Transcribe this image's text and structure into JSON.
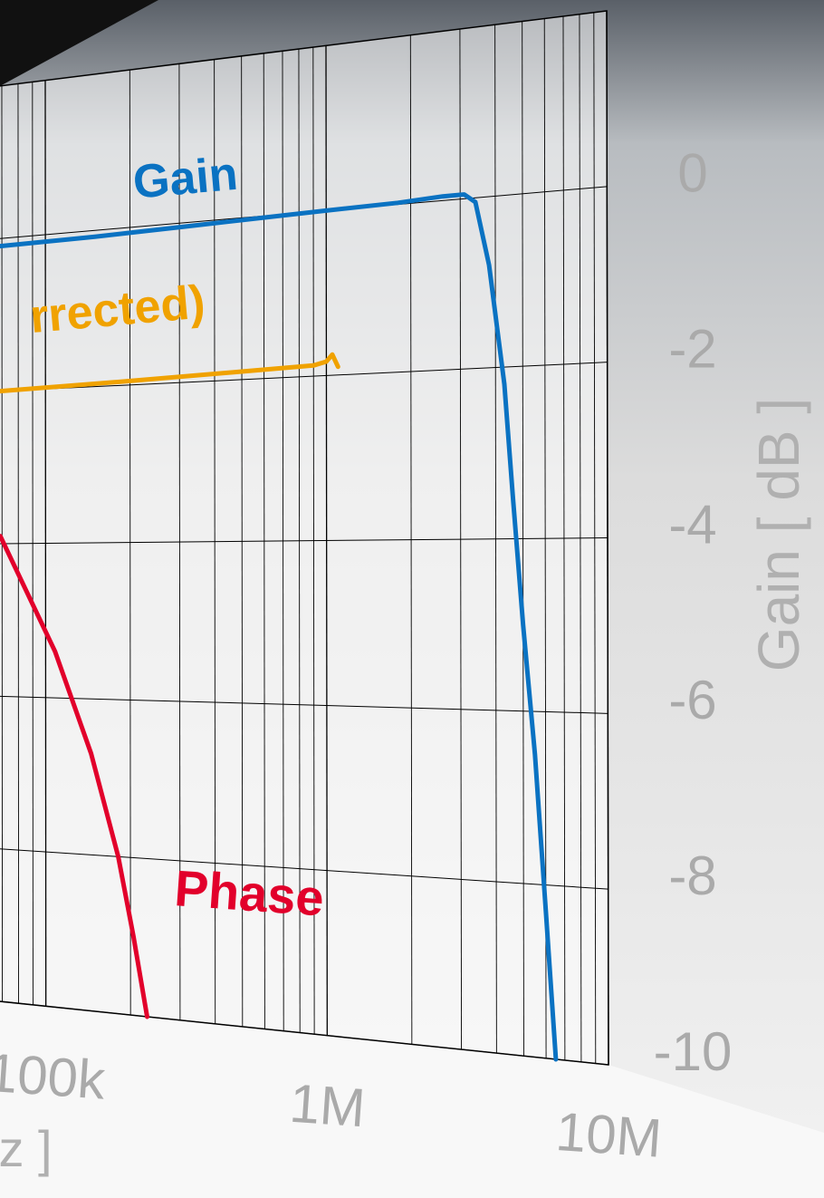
{
  "chart_data": {
    "type": "line",
    "x_label": "z ]",
    "y_label": "Gain [ dB ]",
    "xlog": true,
    "xlim": [
      10000,
      10000000
    ],
    "xticks": [
      {
        "value": 100000,
        "label": "100k"
      },
      {
        "value": 1000000,
        "label": "1M"
      },
      {
        "value": 10000000,
        "label": "10M"
      }
    ],
    "ylim": [
      -10,
      2
    ],
    "yticks": [
      -10,
      -8,
      -6,
      -4,
      -2,
      0
    ],
    "grid": true,
    "series": [
      {
        "name": "Gain",
        "color": "#0a72c2",
        "x": [
          69000,
          150000,
          305000,
          600000,
          1000000,
          1800000,
          2600000,
          3100000,
          3400000,
          3800000,
          4300000,
          4600000,
          5000000,
          5500000,
          6000000,
          6500000
        ],
        "values": [
          -0.1,
          -0.08,
          -0.05,
          -0.02,
          0,
          0.02,
          0.05,
          0.05,
          -0.05,
          -0.8,
          -2.2,
          -3.5,
          -5.0,
          -6.5,
          -8.3,
          -10
        ]
      },
      {
        "name": "rrected)",
        "color": "#f0a200",
        "x": [
          69000,
          200000,
          500000,
          900000,
          1000000,
          1050000,
          1100000
        ],
        "values": [
          -2.0,
          -1.95,
          -1.9,
          -1.87,
          -1.83,
          -1.75,
          -1.9
        ]
      },
      {
        "name": "Phase",
        "color": "#e2002b",
        "x": [
          69000,
          108000,
          145000,
          181000,
          205000,
          229000
        ],
        "values": [
          -3.9,
          -5.4,
          -6.7,
          -8.0,
          -9.0,
          -10
        ]
      }
    ]
  }
}
